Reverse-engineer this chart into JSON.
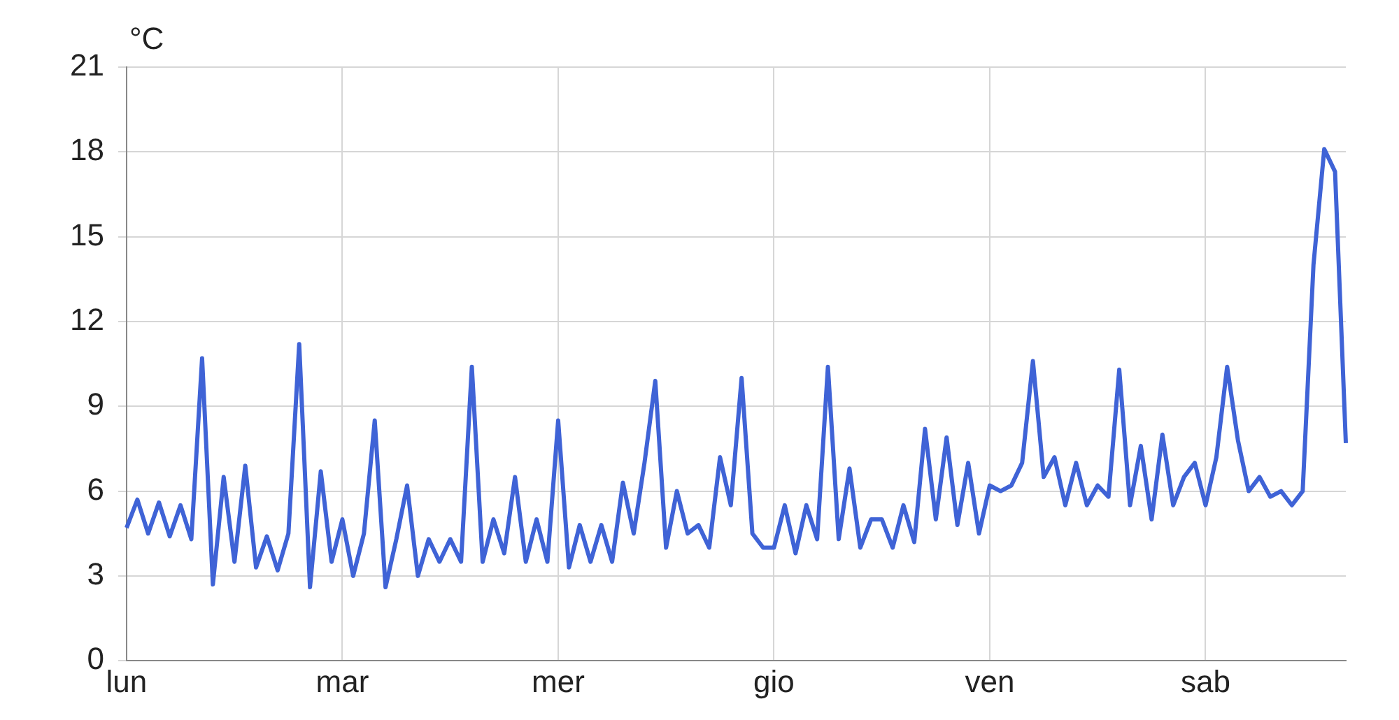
{
  "chart_data": {
    "type": "line",
    "ylabel": "°C",
    "ylim": [
      0,
      21
    ],
    "categories": [
      "lun",
      null,
      null,
      null,
      null,
      null,
      null,
      null,
      null,
      null,
      null,
      null,
      null,
      null,
      null,
      null,
      null,
      null,
      null,
      null,
      "mar",
      null,
      null,
      null,
      null,
      null,
      null,
      null,
      null,
      null,
      null,
      null,
      null,
      null,
      null,
      null,
      null,
      null,
      null,
      null,
      "mer",
      null,
      null,
      null,
      null,
      null,
      null,
      null,
      null,
      null,
      null,
      null,
      null,
      null,
      null,
      null,
      null,
      null,
      null,
      null,
      "gio",
      null,
      null,
      null,
      null,
      null,
      null,
      null,
      null,
      null,
      null,
      null,
      null,
      null,
      null,
      null,
      null,
      null,
      null,
      null,
      "ven",
      null,
      null,
      null,
      null,
      null,
      null,
      null,
      null,
      null,
      null,
      null,
      null,
      null,
      null,
      null,
      null,
      null,
      null,
      null,
      "sab",
      null,
      null,
      null,
      null,
      null,
      null,
      null,
      null,
      null,
      null,
      null,
      null,
      null
    ],
    "yticks": [
      0,
      3,
      6,
      9,
      12,
      15,
      18,
      21
    ],
    "grid": true,
    "legend": false,
    "marker": "none",
    "line_style": "solid",
    "series": [
      {
        "color": "#3f63d6",
        "values": [
          4.7,
          5.7,
          4.5,
          5.6,
          4.4,
          5.5,
          4.3,
          10.7,
          2.7,
          6.5,
          3.5,
          6.9,
          3.3,
          4.4,
          3.2,
          4.5,
          11.2,
          2.6,
          6.7,
          3.5,
          5.0,
          3.0,
          4.5,
          8.5,
          2.6,
          4.3,
          6.2,
          3.0,
          4.3,
          3.5,
          4.3,
          3.5,
          10.4,
          3.5,
          5.0,
          3.8,
          6.5,
          3.5,
          5.0,
          3.5,
          8.5,
          3.3,
          4.8,
          3.5,
          4.8,
          3.5,
          6.3,
          4.5,
          7.0,
          9.9,
          4.0,
          6.0,
          4.5,
          4.8,
          4.0,
          7.2,
          5.5,
          10.0,
          4.5,
          4.0,
          4.0,
          5.5,
          3.8,
          5.5,
          4.3,
          10.4,
          4.3,
          6.8,
          4.0,
          5.0,
          5.0,
          4.0,
          5.5,
          4.2,
          8.2,
          5.0,
          7.9,
          4.8,
          7.0,
          4.5,
          6.2,
          6.0,
          6.2,
          7.0,
          10.6,
          6.5,
          7.2,
          5.5,
          7.0,
          5.5,
          6.2,
          5.8,
          10.3,
          5.5,
          7.6,
          5.0,
          8.0,
          5.5,
          6.5,
          7.0,
          5.5,
          7.2,
          10.4,
          7.8,
          6.0,
          6.5,
          5.8,
          6.0,
          5.5,
          6.0,
          14.0,
          18.1,
          17.3,
          7.7
        ]
      }
    ]
  }
}
